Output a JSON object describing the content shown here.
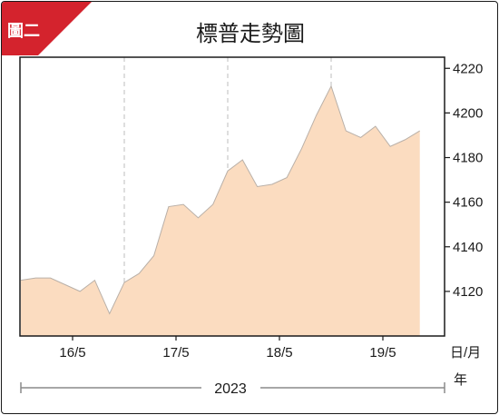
{
  "badge": {
    "label": "圖二",
    "color": "#d4232d"
  },
  "chart_data": {
    "type": "area",
    "title": "標普走勢圖",
    "xlabel": "日/月",
    "year_label": "年",
    "period_label": "2023",
    "x_ticks": [
      "16/5",
      "17/5",
      "18/5",
      "19/5"
    ],
    "y_ticks": [
      4120,
      4140,
      4160,
      4180,
      4200,
      4220
    ],
    "ylim": [
      4100,
      4225
    ],
    "fill_color": "#fbdcc0",
    "line_color": "#b9b0a8",
    "grid": "vertical dashed at day boundaries",
    "series": [
      {
        "values": [
          4125,
          4126,
          4126,
          4123,
          4120,
          4125,
          4110,
          4124,
          4128,
          4136,
          4158,
          4159,
          4153,
          4159,
          4174,
          4179,
          4167,
          4168,
          4171,
          4184,
          4199,
          4212,
          4192,
          4189,
          4194,
          4185,
          4188,
          4192
        ]
      }
    ]
  }
}
